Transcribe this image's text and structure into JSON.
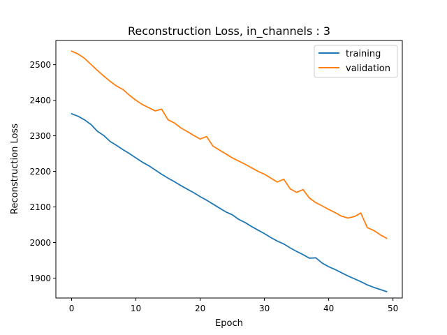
{
  "chart_data": {
    "type": "line",
    "title": "Reconstruction Loss, in_channels : 3",
    "xlabel": "Epoch",
    "ylabel": "Reconstruction Loss",
    "xlim": [
      -2.45,
      51.45
    ],
    "ylim": [
      1844,
      2568
    ],
    "xticks": [
      0,
      10,
      20,
      30,
      40,
      50
    ],
    "yticks": [
      1900,
      2000,
      2100,
      2200,
      2300,
      2400,
      2500
    ],
    "grid": false,
    "legend_position": "top-right",
    "x": [
      0,
      1,
      2,
      3,
      4,
      5,
      6,
      7,
      8,
      9,
      10,
      11,
      12,
      13,
      14,
      15,
      16,
      17,
      18,
      19,
      20,
      21,
      22,
      23,
      24,
      25,
      26,
      27,
      28,
      29,
      30,
      31,
      32,
      33,
      34,
      35,
      36,
      37,
      38,
      39,
      40,
      41,
      42,
      43,
      44,
      45,
      46,
      47,
      48,
      49
    ],
    "series": [
      {
        "name": "training",
        "color": "#1f77b4",
        "values": [
          2362,
          2355,
          2345,
          2332,
          2313,
          2301,
          2284,
          2273,
          2261,
          2250,
          2238,
          2226,
          2216,
          2204,
          2192,
          2181,
          2171,
          2160,
          2150,
          2140,
          2129,
          2119,
          2108,
          2097,
          2086,
          2078,
          2065,
          2056,
          2045,
          2035,
          2025,
          2014,
          2004,
          1996,
          1985,
          1975,
          1966,
          1956,
          1957,
          1942,
          1932,
          1924,
          1915,
          1906,
          1898,
          1890,
          1881,
          1874,
          1868,
          1862
        ]
      },
      {
        "name": "validation",
        "color": "#ff7f0e",
        "values": [
          2538,
          2530,
          2518,
          2501,
          2484,
          2468,
          2453,
          2440,
          2430,
          2414,
          2400,
          2388,
          2379,
          2370,
          2375,
          2345,
          2336,
          2322,
          2312,
          2301,
          2291,
          2298,
          2271,
          2260,
          2249,
          2238,
          2229,
          2220,
          2210,
          2200,
          2192,
          2181,
          2170,
          2178,
          2151,
          2141,
          2149,
          2125,
          2112,
          2103,
          2093,
          2084,
          2074,
          2069,
          2073,
          2083,
          2042,
          2034,
          2022,
          2012
        ]
      }
    ]
  }
}
